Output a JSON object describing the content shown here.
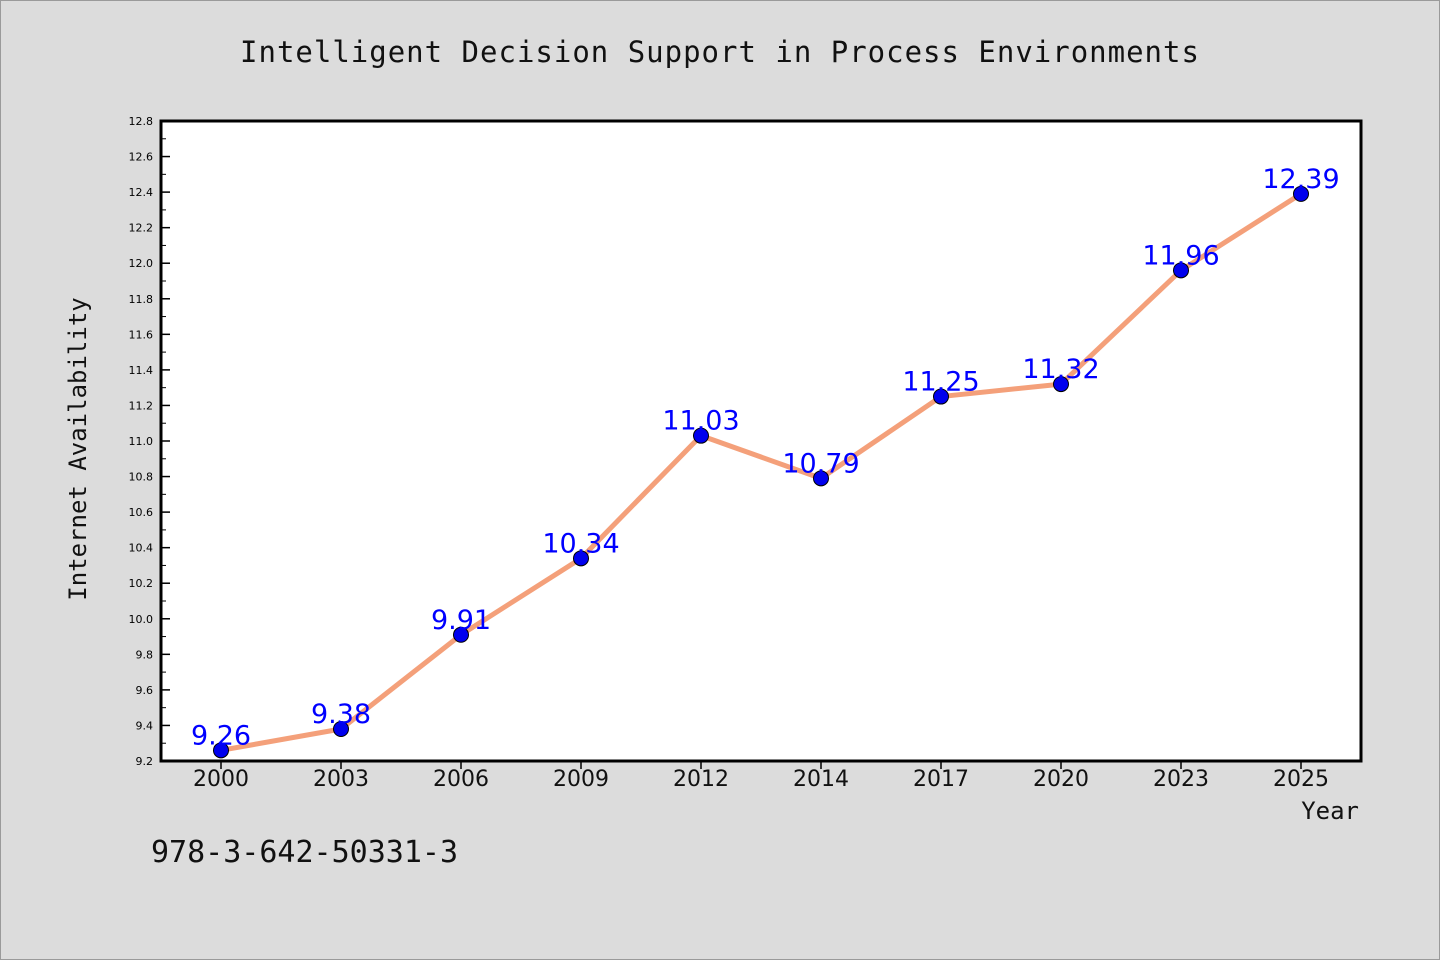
{
  "chart_data": {
    "type": "line",
    "title": "Intelligent Decision Support in Process Environments",
    "xlabel": "Year",
    "ylabel": "Internet Availability",
    "categories": [
      "2000",
      "2003",
      "2006",
      "2009",
      "2012",
      "2014",
      "2017",
      "2020",
      "2023",
      "2025"
    ],
    "series": [
      {
        "values": [
          9.26,
          9.38,
          9.91,
          10.34,
          11.03,
          10.79,
          11.25,
          11.32,
          11.96,
          12.39
        ],
        "data_labels": [
          "9.26",
          "9.38",
          "9.91",
          "10.34",
          "11.03",
          "10.79",
          "11.25",
          "11.32",
          "11.96",
          "12.39"
        ]
      }
    ],
    "ylim": [
      9.2,
      12.8
    ],
    "y_ticks": [
      "9.2",
      "9.4",
      "9.6",
      "9.8",
      "10.0",
      "10.2",
      "10.4",
      "10.6",
      "10.8",
      "11.0",
      "11.2",
      "11.4",
      "11.6",
      "11.8",
      "12.0",
      "12.2",
      "12.4",
      "12.6",
      "12.8"
    ],
    "grid": false,
    "legend": "none",
    "colors": {
      "line": "#f4a07a",
      "marker": "#0000ee",
      "data_label": "#0000ff",
      "background": "#dcdcdc",
      "plot_background": "#ffffff"
    }
  },
  "footnote": "978-3-642-50331-3"
}
